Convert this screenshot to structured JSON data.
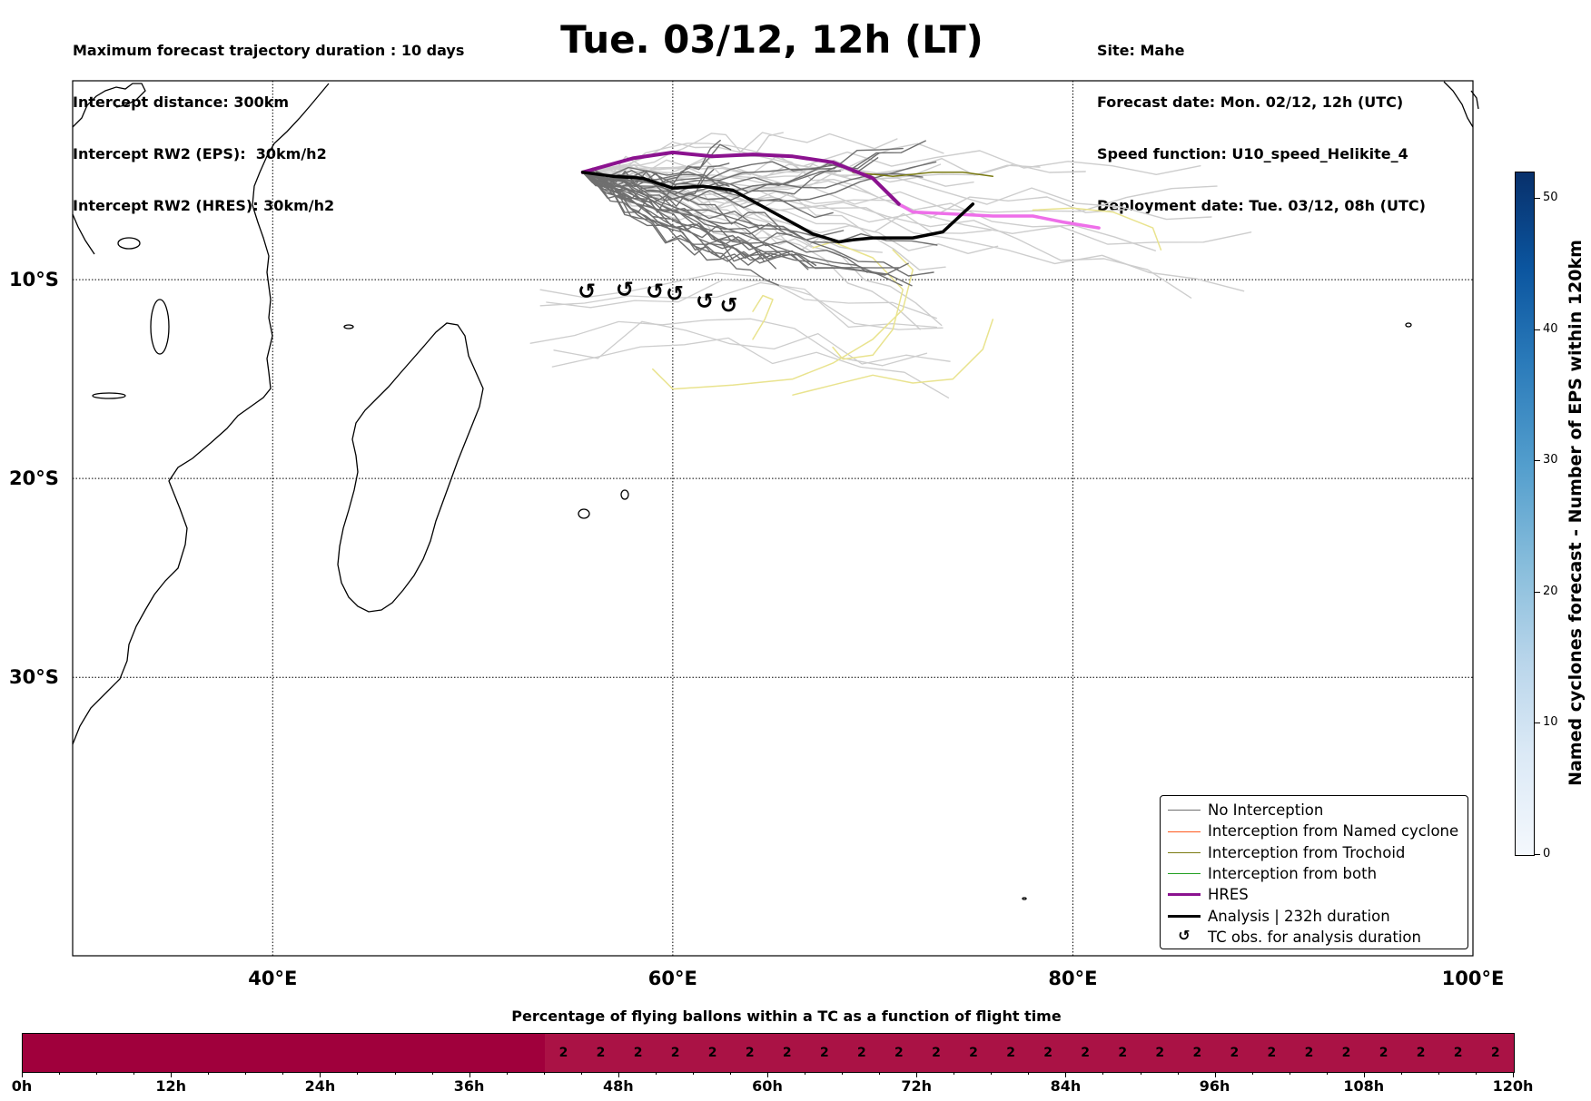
{
  "header": {
    "left_lines": [
      "Maximum forecast trajectory duration : 10 days",
      "Intercept distance: 300km",
      "Intercept RW2 (EPS):  30km/h2",
      "Intercept RW2 (HRES): 30km/h2"
    ],
    "title": "Tue. 03/12, 12h (LT)",
    "right_lines": [
      "Site: Mahe",
      "Forecast date: Mon. 02/12, 12h (UTC)",
      "Speed function: U10_speed_Helikite_4",
      "Deployment date: Tue. 03/12, 08h (UTC)"
    ]
  },
  "map": {
    "lon_range": [
      30,
      100
    ],
    "lat_range": [
      0,
      -44
    ],
    "lat_labels": [
      {
        "lat": -10,
        "label": "10°S"
      },
      {
        "lat": -20,
        "label": "20°S"
      },
      {
        "lat": -30,
        "label": "30°S"
      }
    ],
    "lon_labels": [
      {
        "lon": 40,
        "label": "40°E"
      },
      {
        "lon": 60,
        "label": "60°E"
      },
      {
        "lon": 80,
        "label": "80°E"
      },
      {
        "lon": 100,
        "label": "100°E"
      }
    ],
    "colors": {
      "no_interception": "#6f6f6f",
      "eps_light": "#cdcdcd",
      "yellow": "#e9e38e",
      "olive": "#7a7a12",
      "hres": "#8b128f",
      "hres_tail": "#ee6fe9",
      "analysis": "#000000"
    },
    "hres_track": [
      [
        55.5,
        -4.6
      ],
      [
        58,
        -3.9
      ],
      [
        60,
        -3.6
      ],
      [
        62,
        -3.8
      ],
      [
        64,
        -3.7
      ],
      [
        66,
        -3.8
      ],
      [
        68,
        -4.1
      ],
      [
        70,
        -4.9
      ],
      [
        71.3,
        -6.2
      ]
    ],
    "hres_tail_track": [
      [
        71.3,
        -6.2
      ],
      [
        72,
        -6.6
      ],
      [
        74,
        -6.7
      ],
      [
        76,
        -6.8
      ],
      [
        78,
        -6.8
      ],
      [
        79.5,
        -7.1
      ],
      [
        81.3,
        -7.4
      ]
    ],
    "analysis_track": [
      [
        55.5,
        -4.6
      ],
      [
        57,
        -4.8
      ],
      [
        58.5,
        -4.9
      ],
      [
        60,
        -5.4
      ],
      [
        61.5,
        -5.3
      ],
      [
        63,
        -5.5
      ],
      [
        65,
        -6.6
      ],
      [
        67,
        -7.7
      ],
      [
        68.3,
        -8.1
      ],
      [
        69,
        -8.0
      ],
      [
        70,
        -7.9
      ],
      [
        72,
        -7.9
      ],
      [
        73.5,
        -7.6
      ],
      [
        75,
        -6.2
      ]
    ],
    "tc_obs_markers": [
      [
        55.7,
        -10.6
      ],
      [
        57.6,
        -10.5
      ],
      [
        59.1,
        -10.6
      ],
      [
        60.1,
        -10.7
      ],
      [
        61.6,
        -11.1
      ],
      [
        62.8,
        -11.3
      ]
    ]
  },
  "legend": {
    "items": [
      {
        "label": "No Interception",
        "color": "#6f6f6f",
        "width": 1.5,
        "type": "line"
      },
      {
        "label": "Interception from Named cyclone",
        "color": "#ff5a1f",
        "width": 1.5,
        "type": "line"
      },
      {
        "label": "Interception from Trochoid",
        "color": "#7a7a12",
        "width": 1.5,
        "type": "line"
      },
      {
        "label": "Interception from both",
        "color": "#22a022",
        "width": 1.5,
        "type": "line"
      },
      {
        "label": "HRES",
        "color": "#8b128f",
        "width": 3.5,
        "type": "line"
      },
      {
        "label": "Analysis | 232h duration",
        "color": "#000000",
        "width": 3.5,
        "type": "line"
      },
      {
        "label": "TC obs. for analysis duration",
        "color": "#000000",
        "type": "marker",
        "glyph": "↺"
      }
    ]
  },
  "colorbar": {
    "label": "Named cyclones forecast - Number of EPS within 120km",
    "range": [
      0,
      52
    ],
    "ticks": [
      0,
      10,
      20,
      30,
      40,
      50
    ]
  },
  "pct_bar": {
    "title": "Percentage of flying ballons within a TC as a function of flight time",
    "hours_range": [
      0,
      120
    ],
    "cell_hours": 3,
    "color_zero": "#a0003c",
    "color_two": "#aa1245",
    "values": [
      0,
      0,
      0,
      0,
      0,
      0,
      0,
      0,
      0,
      0,
      0,
      0,
      0,
      0,
      2,
      2,
      2,
      2,
      2,
      2,
      2,
      2,
      2,
      2,
      2,
      2,
      2,
      2,
      2,
      2,
      2,
      2,
      2,
      2,
      2,
      2,
      2,
      2,
      2,
      2
    ],
    "tick_labels": [
      "0h",
      "12h",
      "24h",
      "36h",
      "48h",
      "60h",
      "72h",
      "84h",
      "96h",
      "108h",
      "120h"
    ]
  }
}
